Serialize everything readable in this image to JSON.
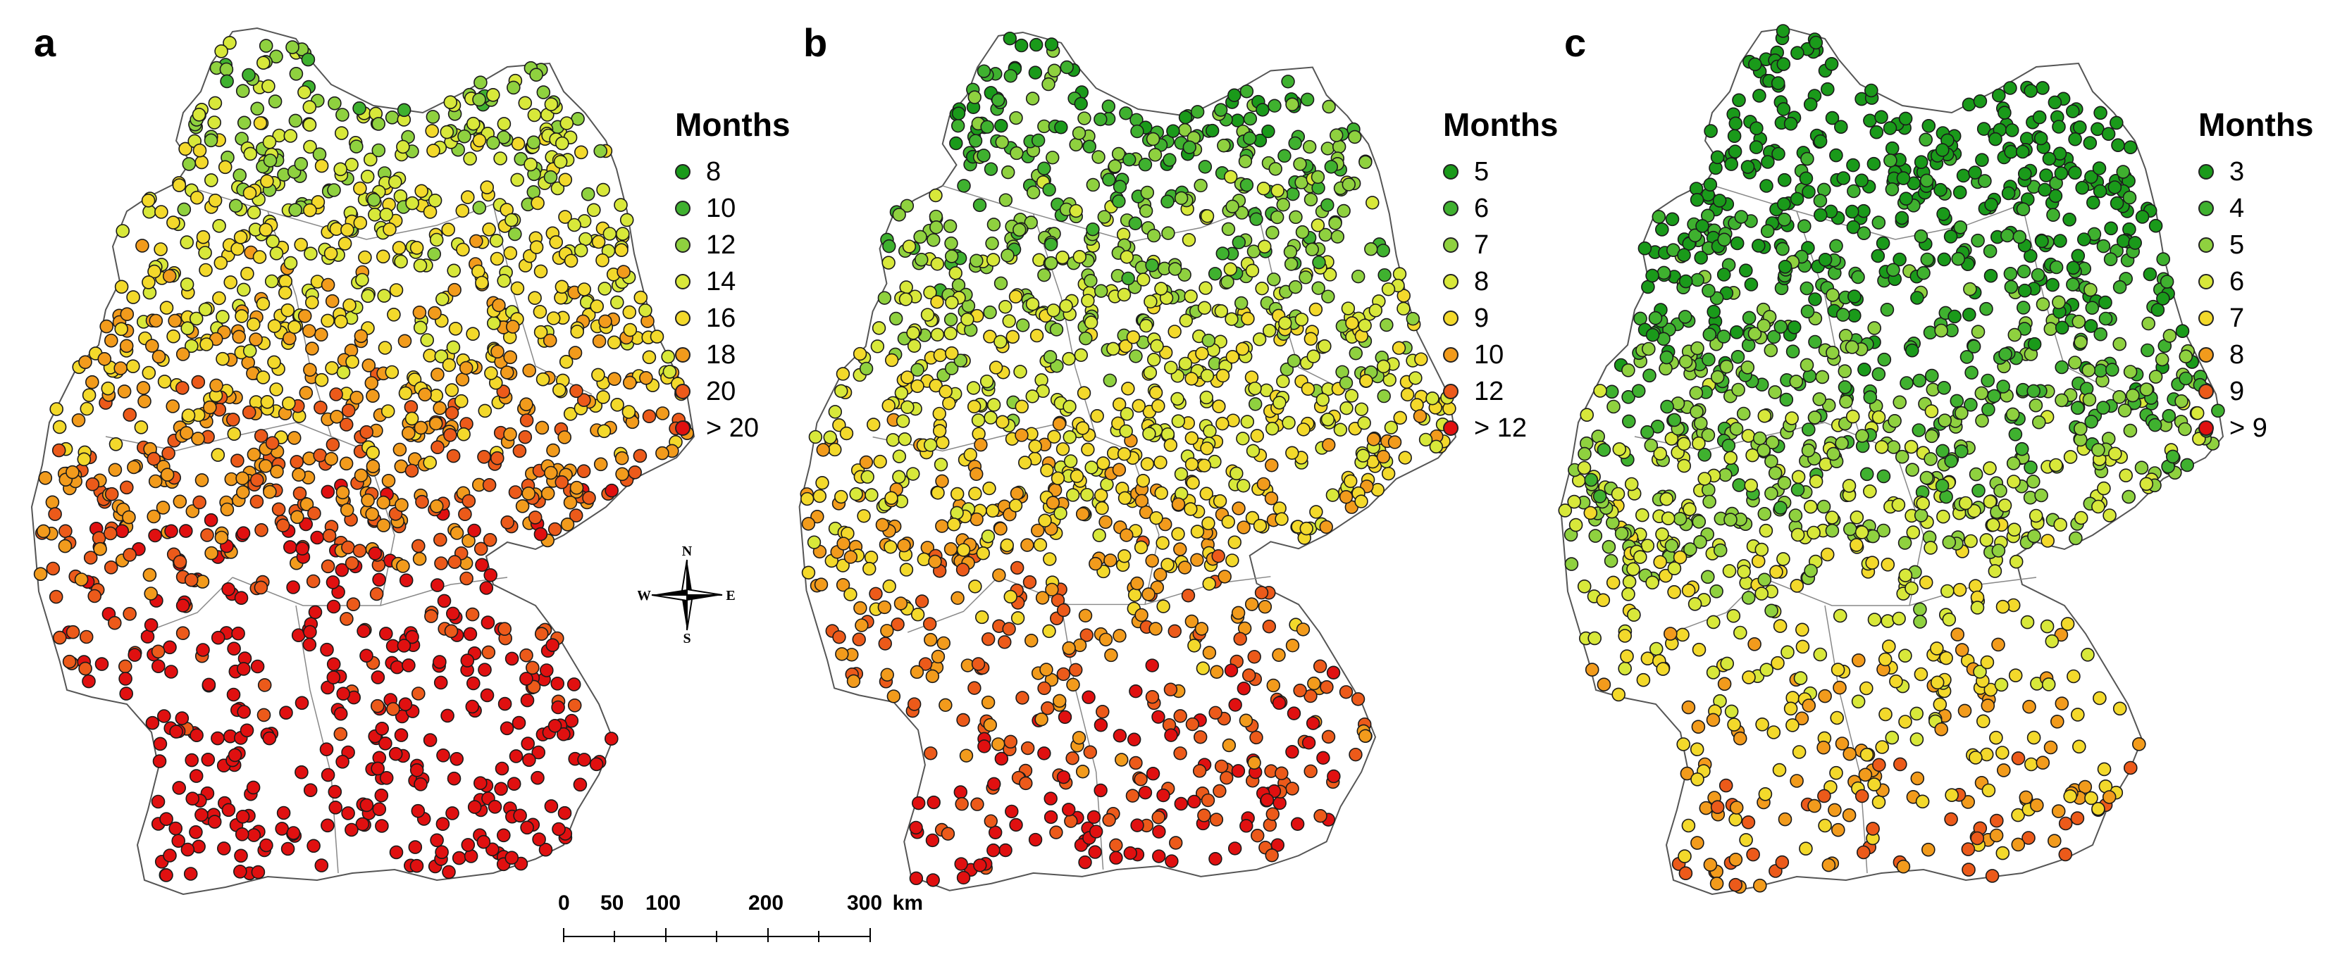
{
  "panels": [
    {
      "id": "a",
      "letter": "a",
      "legend": {
        "title": "Months",
        "items": [
          {
            "label": "8",
            "color": "#1a9a1a"
          },
          {
            "label": "10",
            "color": "#3fb12f"
          },
          {
            "label": "12",
            "color": "#8fd13f"
          },
          {
            "label": "14",
            "color": "#d8e83a"
          },
          {
            "label": "16",
            "color": "#f3d92b"
          },
          {
            "label": "18",
            "color": "#f29b1c"
          },
          {
            "label": "20",
            "color": "#ec5a1a"
          },
          {
            "label": "> 20",
            "color": "#e01010"
          }
        ]
      }
    },
    {
      "id": "b",
      "letter": "b",
      "legend": {
        "title": "Months",
        "items": [
          {
            "label": "5",
            "color": "#1a9a1a"
          },
          {
            "label": "6",
            "color": "#3fb12f"
          },
          {
            "label": "7",
            "color": "#8fd13f"
          },
          {
            "label": "8",
            "color": "#d8e83a"
          },
          {
            "label": "9",
            "color": "#f3d92b"
          },
          {
            "label": "10",
            "color": "#f29b1c"
          },
          {
            "label": "12",
            "color": "#ec5a1a"
          },
          {
            "label": "> 12",
            "color": "#e01010"
          }
        ]
      }
    },
    {
      "id": "c",
      "letter": "c",
      "legend": {
        "title": "Months",
        "items": [
          {
            "label": "3",
            "color": "#1a9a1a"
          },
          {
            "label": "4",
            "color": "#3fb12f"
          },
          {
            "label": "5",
            "color": "#8fd13f"
          },
          {
            "label": "6",
            "color": "#d8e83a"
          },
          {
            "label": "7",
            "color": "#f3d92b"
          },
          {
            "label": "8",
            "color": "#f29b1c"
          },
          {
            "label": "9",
            "color": "#ec5a1a"
          },
          {
            "label": "> 9",
            "color": "#e01010"
          }
        ]
      }
    }
  ],
  "compass": {
    "n": "N",
    "s": "S",
    "e": "E",
    "w": "W"
  },
  "scale": {
    "ticks": [
      "0",
      "50",
      "100",
      "200",
      "300"
    ],
    "unit": "km"
  }
}
